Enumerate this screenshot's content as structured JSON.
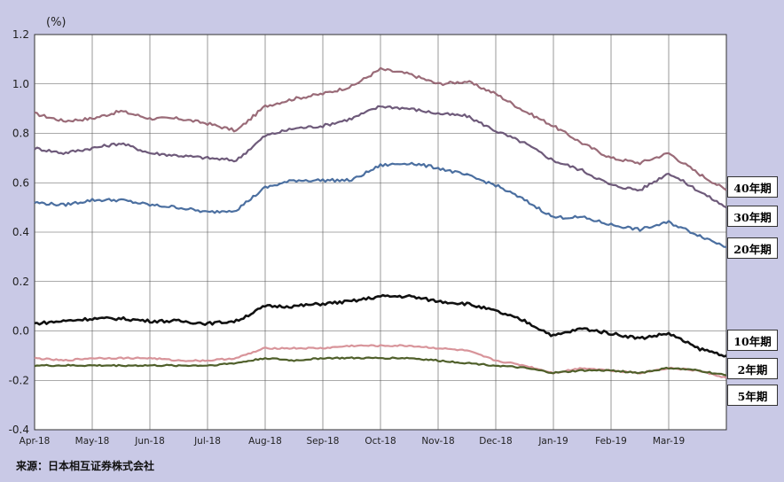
{
  "chart_data": {
    "type": "line",
    "unit_label": "(%)",
    "ylim": [
      -0.4,
      1.2
    ],
    "y_ticks": [
      "1.2",
      "1.0",
      "0.8",
      "0.6",
      "0.4",
      "0.2",
      "0.0",
      "-0.2",
      "-0.4"
    ],
    "x_ticks": [
      "Apr-18",
      "May-18",
      "Jun-18",
      "Jul-18",
      "Aug-18",
      "Sep-18",
      "Oct-18",
      "Nov-18",
      "Dec-18",
      "Jan-19",
      "Feb-19",
      "Mar-19"
    ],
    "grid": true,
    "source": "来源：日本相互证券株式会社",
    "series": [
      {
        "name": "40年期",
        "color": "#9a6b78",
        "x": [
          0,
          0.5,
          1,
          1.5,
          2,
          2.5,
          3,
          3.5,
          4,
          4.5,
          5,
          5.5,
          6,
          6.5,
          7,
          7.5,
          8,
          8.5,
          9,
          9.5,
          10,
          10.5,
          11,
          11.5,
          12
        ],
        "values": [
          0.88,
          0.85,
          0.86,
          0.89,
          0.86,
          0.86,
          0.84,
          0.81,
          0.91,
          0.94,
          0.96,
          0.99,
          1.06,
          1.04,
          1.0,
          1.01,
          0.96,
          0.89,
          0.83,
          0.76,
          0.7,
          0.68,
          0.72,
          0.64,
          0.57
        ]
      },
      {
        "name": "30年期",
        "color": "#6e5a7a",
        "x": [
          0,
          0.5,
          1,
          1.5,
          2,
          2.5,
          3,
          3.5,
          4,
          4.5,
          5,
          5.5,
          6,
          6.5,
          7,
          7.5,
          8,
          8.5,
          9,
          9.5,
          10,
          10.5,
          11,
          11.5,
          12
        ],
        "values": [
          0.74,
          0.72,
          0.74,
          0.76,
          0.72,
          0.71,
          0.7,
          0.69,
          0.79,
          0.82,
          0.83,
          0.86,
          0.91,
          0.9,
          0.88,
          0.87,
          0.81,
          0.76,
          0.69,
          0.65,
          0.59,
          0.57,
          0.64,
          0.57,
          0.5
        ]
      },
      {
        "name": "20年期",
        "color": "#4b6fa0",
        "x": [
          0,
          0.5,
          1,
          1.5,
          2,
          2.5,
          3,
          3.5,
          4,
          4.5,
          5,
          5.5,
          6,
          6.5,
          7,
          7.5,
          8,
          8.5,
          9,
          9.5,
          10,
          10.5,
          11,
          11.5,
          12
        ],
        "values": [
          0.52,
          0.51,
          0.53,
          0.53,
          0.51,
          0.5,
          0.48,
          0.49,
          0.58,
          0.61,
          0.61,
          0.61,
          0.67,
          0.68,
          0.66,
          0.63,
          0.59,
          0.53,
          0.46,
          0.46,
          0.43,
          0.41,
          0.44,
          0.39,
          0.34
        ]
      },
      {
        "name": "10年期",
        "color": "#111111",
        "x": [
          0,
          0.5,
          1,
          1.5,
          2,
          2.5,
          3,
          3.5,
          4,
          4.5,
          5,
          5.5,
          6,
          6.5,
          7,
          7.5,
          8,
          8.5,
          9,
          9.5,
          10,
          10.5,
          11,
          11.5,
          12
        ],
        "values": [
          0.03,
          0.04,
          0.05,
          0.05,
          0.04,
          0.04,
          0.03,
          0.04,
          0.1,
          0.1,
          0.11,
          0.12,
          0.14,
          0.14,
          0.12,
          0.11,
          0.08,
          0.04,
          -0.02,
          0.01,
          -0.01,
          -0.03,
          -0.01,
          -0.07,
          -0.1
        ]
      },
      {
        "name": "2年期",
        "color": "#d8949a",
        "x": [
          0,
          0.5,
          1,
          1.5,
          2,
          2.5,
          3,
          3.5,
          4,
          4.5,
          5,
          5.5,
          6,
          6.5,
          7,
          7.5,
          8,
          8.5,
          9,
          9.5,
          10,
          10.5,
          11,
          11.5,
          12
        ],
        "values": [
          -0.11,
          -0.12,
          -0.11,
          -0.11,
          -0.11,
          -0.12,
          -0.12,
          -0.11,
          -0.07,
          -0.07,
          -0.07,
          -0.06,
          -0.06,
          -0.06,
          -0.07,
          -0.08,
          -0.12,
          -0.14,
          -0.17,
          -0.15,
          -0.16,
          -0.17,
          -0.15,
          -0.16,
          -0.19
        ]
      },
      {
        "name": "5年期",
        "color": "#4f5f2a",
        "x": [
          0,
          0.5,
          1,
          1.5,
          2,
          2.5,
          3,
          3.5,
          4,
          4.5,
          5,
          5.5,
          6,
          6.5,
          7,
          7.5,
          8,
          8.5,
          9,
          9.5,
          10,
          10.5,
          11,
          11.5,
          12
        ],
        "values": [
          -0.14,
          -0.14,
          -0.14,
          -0.14,
          -0.14,
          -0.14,
          -0.14,
          -0.13,
          -0.11,
          -0.12,
          -0.11,
          -0.11,
          -0.11,
          -0.11,
          -0.12,
          -0.13,
          -0.14,
          -0.15,
          -0.17,
          -0.16,
          -0.16,
          -0.17,
          -0.15,
          -0.16,
          -0.18
        ]
      }
    ],
    "legend": [
      {
        "label": "40年期"
      },
      {
        "label": "30年期"
      },
      {
        "label": "20年期"
      },
      {
        "label": "10年期"
      },
      {
        "label": "2年期"
      },
      {
        "label": "5年期"
      }
    ]
  }
}
